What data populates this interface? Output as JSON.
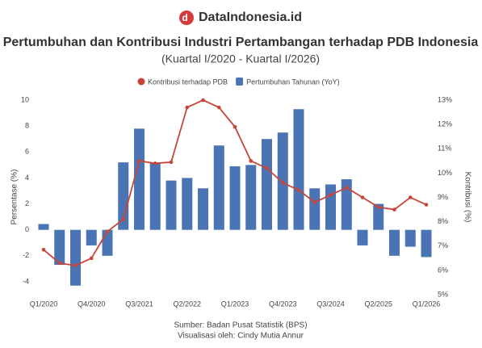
{
  "brand": "DataIndonesia.id",
  "chart_data": {
    "type": "bar-line",
    "title": "Pertumbuhan dan Kontribusi Industri Pertambangan terhadap PDB Indonesia",
    "subtitle": "(Kuartal I/2020 - Kuartal I/2026)",
    "y_label": "Persentase (%)",
    "y2_label": "Kontribusi (%)",
    "categories": [
      "Q1/2020",
      null,
      null,
      "Q4/2020",
      null,
      null,
      "Q3/2021",
      null,
      null,
      "Q2/2022",
      null,
      null,
      "Q1/2023",
      null,
      null,
      "Q4/2023",
      null,
      null,
      "Q3/2024",
      null,
      null,
      "Q2/2025",
      null,
      null,
      "Q1/2026"
    ],
    "series": [
      {
        "name": "Kontribusi terhadap PDB",
        "color": "#c8453a",
        "axis": "y2",
        "kind": "line",
        "values": [
          6.85,
          6.3,
          6.2,
          6.5,
          7.6,
          8.1,
          10.5,
          10.4,
          10.45,
          12.7,
          13.0,
          12.7,
          11.9,
          10.5,
          10.2,
          9.6,
          9.3,
          8.8,
          9.1,
          9.4,
          9.0,
          8.6,
          8.5,
          9.0,
          8.7
        ]
      },
      {
        "name": "Pertumbuhan Tahunan (YoY)",
        "color": "#4a74b4",
        "kind": "bar",
        "values": [
          0.45,
          -2.7,
          -4.3,
          -1.2,
          -2.0,
          5.2,
          7.8,
          5.2,
          3.8,
          4.0,
          3.2,
          6.5,
          4.9,
          5.0,
          7.0,
          7.5,
          9.3,
          3.2,
          3.5,
          3.9,
          -1.2,
          2.0,
          -2.0,
          -1.3,
          -2.1
        ]
      }
    ],
    "ylim": [
      -5,
      10
    ],
    "yticks": [
      -4,
      -2,
      0,
      2,
      4,
      6,
      8,
      10
    ],
    "y2lim": [
      5,
      13
    ],
    "y2ticks": [
      {
        "value": 5,
        "label": "5%"
      },
      {
        "value": 6,
        "label": "6%"
      },
      {
        "value": 7,
        "label": "7%"
      },
      {
        "value": 8,
        "label": "8%"
      },
      {
        "value": 9,
        "label": "9%"
      },
      {
        "value": 10,
        "label": "10%"
      },
      {
        "value": 11,
        "label": "11%"
      },
      {
        "value": 12,
        "label": "12%"
      },
      {
        "value": 13,
        "label": "13%"
      }
    ],
    "source": "Sumber: Badan Pusat Statistik (BPS)",
    "credit": "Visualisasi oleh: Cindy Mutia Annur"
  }
}
